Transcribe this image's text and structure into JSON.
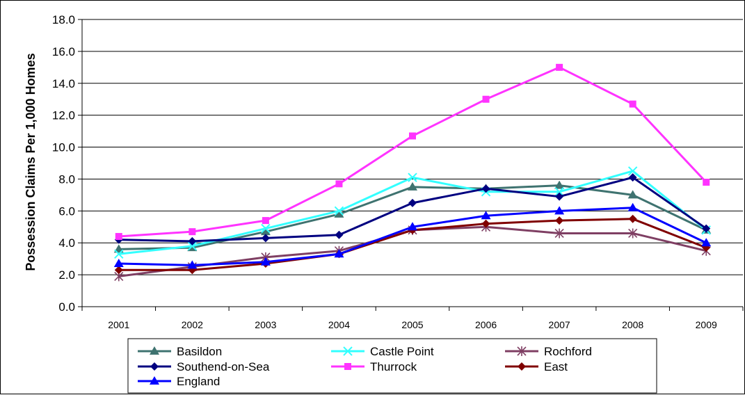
{
  "chart_data": {
    "type": "line",
    "title": "",
    "xlabel": "",
    "ylabel": "Possession Claims Per 1,000 Homes",
    "ylim": [
      0,
      18
    ],
    "yticks": [
      "0.0",
      "2.0",
      "4.0",
      "6.0",
      "8.0",
      "10.0",
      "12.0",
      "14.0",
      "16.0",
      "18.0"
    ],
    "grid": "horizontal",
    "legend": "bottom",
    "categories": [
      "2001",
      "2002",
      "2003",
      "2004",
      "2005",
      "2006",
      "2007",
      "2008",
      "2009"
    ],
    "series": [
      {
        "name": "Basildon",
        "color": "#3f7370",
        "marker": "triangle",
        "values": [
          3.6,
          3.7,
          4.7,
          5.8,
          7.5,
          7.4,
          7.6,
          7.0,
          4.8
        ]
      },
      {
        "name": "Castle Point",
        "color": "#33ffff",
        "marker": "x",
        "values": [
          3.3,
          3.8,
          4.9,
          6.0,
          8.1,
          7.2,
          7.2,
          8.5,
          4.8
        ]
      },
      {
        "name": "Rochford",
        "color": "#7f3f63",
        "marker": "star",
        "values": [
          1.9,
          2.5,
          3.1,
          3.5,
          4.8,
          5.0,
          4.6,
          4.6,
          3.5
        ]
      },
      {
        "name": "Southend-on-Sea",
        "color": "#000080",
        "marker": "diamond",
        "values": [
          4.2,
          4.1,
          4.3,
          4.5,
          6.5,
          7.4,
          6.9,
          8.1,
          4.9
        ]
      },
      {
        "name": "Thurrock",
        "color": "#ff33ff",
        "marker": "square",
        "values": [
          4.4,
          4.7,
          5.4,
          7.7,
          10.7,
          13.0,
          15.0,
          12.7,
          7.8
        ]
      },
      {
        "name": "East",
        "color": "#800000",
        "marker": "diamond",
        "values": [
          2.3,
          2.3,
          2.7,
          3.3,
          4.8,
          5.2,
          5.4,
          5.5,
          3.7
        ]
      },
      {
        "name": "England",
        "color": "#0000ff",
        "marker": "triangle",
        "values": [
          2.7,
          2.6,
          2.8,
          3.3,
          5.0,
          5.7,
          6.0,
          6.2,
          4.0
        ]
      }
    ]
  }
}
